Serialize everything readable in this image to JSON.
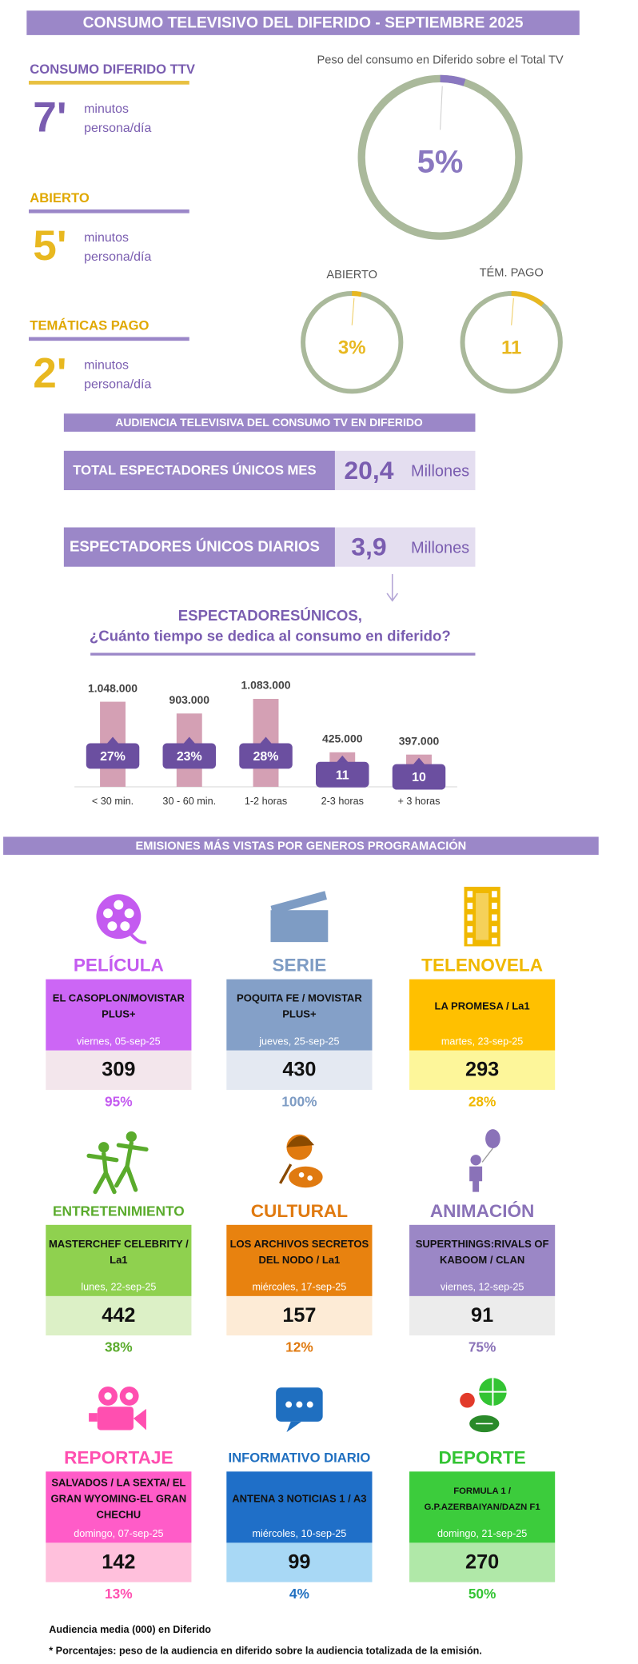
{
  "title": "CONSUMO TELEVISIVO DEL DIFERIDO - SEPTIEMBRE 2025",
  "summary": [
    {
      "heading": "CONSUMO DIFERIDO TTV",
      "value": "7'",
      "unit": [
        "minutos",
        "persona/día"
      ],
      "color": "#7a5db0",
      "value_color": "#7a5db0",
      "line_color": "#e8c040"
    },
    {
      "heading": "ABIERTO",
      "value": "5'",
      "unit": [
        "minutos",
        "persona/día"
      ],
      "color": "#e0a800",
      "value_color": "#e8b820",
      "line_color": "#9b87c8"
    },
    {
      "heading": "TEMÁTICAS PAGO",
      "value": "2'",
      "unit": [
        "minutos",
        "persona/día"
      ],
      "color": "#e0a800",
      "value_color": "#e8b820",
      "line_color": "#9b87c8"
    }
  ],
  "chart_data": [
    {
      "type": "donut",
      "title": "Peso del consumo en Diferido sobre el Total TV",
      "values": [
        5
      ],
      "value_labels": [
        "5%"
      ],
      "color": "#8a78c0",
      "track_color": "#aab99b"
    },
    {
      "type": "donut",
      "title": "ABIERTO",
      "values": [
        3
      ],
      "value_labels": [
        "3%"
      ],
      "color": "#e8b820",
      "track_color": "#aab99b"
    },
    {
      "type": "donut",
      "title": "TÉM. PAGO",
      "values": [
        11
      ],
      "color": "#e8b820",
      "track_color": "#aab99b"
    },
    {
      "type": "bar",
      "title": "ESPECTADORESÚNICOS,",
      "subtitle": "¿Cuánto tiempo se dedica al consumo en diferido?",
      "categories": [
        "< 30 min.",
        "30 - 60 min.",
        "1-2 horas",
        "2-3 horas",
        "+ 3 horas"
      ],
      "values": [
        1048000,
        903000,
        1083000,
        425000,
        397000
      ],
      "value_labels": [
        "1.048.000",
        "903.000",
        "1.083.000",
        "425.000",
        "397.000"
      ],
      "color": "#d4a0b4",
      "ylim": [
        0,
        1100000
      ],
      "shares": [
        27,
        23,
        28,
        11,
        10
      ],
      "share_labels": [
        "27%",
        "23%",
        "28%",
        "11",
        "10"
      ],
      "share_color": "#6b4fa0"
    }
  ],
  "audience": {
    "heading": "AUDIENCIA TELEVISIVA DEL CONSUMO TV EN DIFERIDO",
    "rows": [
      {
        "label": "TOTAL ESPECTADORES ÚNICOS  MES",
        "value": "20,4",
        "unit": "Millones"
      },
      {
        "label": "ESPECTADORES ÚNICOS DIARIOS",
        "value": "3,9",
        "unit": "Millones"
      }
    ]
  },
  "genres_heading": "EMISIONES MÁS VISTAS POR GENEROS PROGRAMACIÓN",
  "genres": [
    {
      "name": "PELÍCULA",
      "title": [
        "EL CASOPLON/MOVISTAR",
        "PLUS+"
      ],
      "date": "viernes, 05-sep-25",
      "value": 309,
      "share": "95%",
      "color": "#c45bf0",
      "box_color": "#cc66f5",
      "value_bg": "#f3e6ec"
    },
    {
      "name": "SERIE",
      "title": [
        "POQUITA FE / MOVISTAR",
        "PLUS+"
      ],
      "date": "jueves, 25-sep-25",
      "value": 430,
      "share": "100%",
      "color": "#7e9cc4",
      "box_color": "#84a0c8",
      "value_bg": "#e4e9f2"
    },
    {
      "name": "TELENOVELA",
      "title": [
        "LA PROMESA / La1"
      ],
      "date": "martes, 23-sep-25",
      "value": 293,
      "share": "28%",
      "color": "#f0b800",
      "box_color": "#ffc000",
      "value_bg": "#fdf69a"
    },
    {
      "name": "ENTRETENIMIENTO",
      "title": [
        "MASTERCHEF CELEBRITY /",
        "La1"
      ],
      "date": "lunes, 22-sep-25",
      "value": 442,
      "share": "38%",
      "color": "#5aab2c",
      "box_color": "#8fd14f",
      "value_bg": "#dcf0c6"
    },
    {
      "name": "CULTURAL",
      "title": [
        "LOS ARCHIVOS SECRETOS",
        "DEL NODO / La1"
      ],
      "date": "miércoles, 17-sep-25",
      "value": 157,
      "share": "12%",
      "color": "#e07a10",
      "box_color": "#e8820f",
      "value_bg": "#fdebd6"
    },
    {
      "name": "ANIMACIÓN",
      "title": [
        "SUPERTHINGS:RIVALS OF",
        "KABOOM / CLAN"
      ],
      "date": "viernes, 12-sep-25",
      "value": 91,
      "share": "75%",
      "color": "#8a72b8",
      "box_color": "#9b87c6",
      "value_bg": "#ececec"
    },
    {
      "name": "REPORTAJE",
      "title": [
        "SALVADOS / LA SEXTA/ EL",
        "GRAN WYOMING-EL GRAN",
        "CHECHU"
      ],
      "date": "domingo, 07-sep-25",
      "value": 142,
      "share": "13%",
      "color": "#ff4fb0",
      "box_color": "#ff5cc8",
      "value_bg": "#ffc0dc"
    },
    {
      "name": "INFORMATIVO DIARIO",
      "title": [
        "ANTENA 3 NOTICIAS 1 / A3"
      ],
      "date": "miércoles, 10-sep-25",
      "value": 99,
      "share": "4%",
      "color": "#1f6fc0",
      "box_color": "#1f6fc8",
      "value_bg": "#a8d8f5"
    },
    {
      "name": "DEPORTE",
      "title": [
        "FORMULA 1 /",
        "G.P.AZERBAIYAN/DAZN F1"
      ],
      "date": "domingo, 21-sep-25",
      "value": 270,
      "share": "50%",
      "color": "#33c433",
      "box_color": "#3ccc3c",
      "value_bg": "#b0e8a8"
    }
  ],
  "footnotes": [
    "Audiencia media (000) en Diferido",
    "* Porcentajes: peso de la audiencia en diferido sobre la audiencia totalizada de la emisión."
  ]
}
